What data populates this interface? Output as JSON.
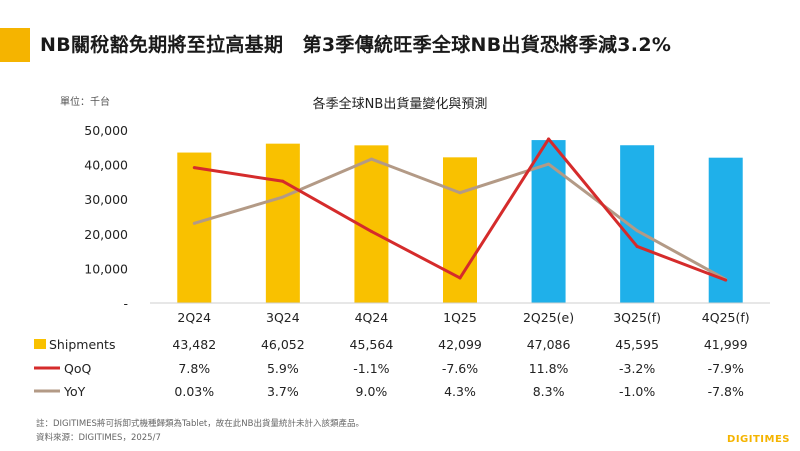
{
  "headline": "NB關稅豁免期將至拉高基期　第3季傳統旺季全球NB出貨恐將季減3.2%",
  "unit_label": "單位：千台",
  "footnote_1": "註：DIGITIMES將可拆卸式機種歸類為Tablet，故在此NB出貨量統計未計入該類產品。",
  "footnote_2": "資料來源：DIGITIMES，2025/7",
  "logo": "DIGITIMES",
  "colors": {
    "accent": "#f5b400",
    "bar_actual": "#f9c100",
    "bar_forecast": "#1fb0ea",
    "qoq_line": "#d52b2b",
    "yoy_line": "#b39a86"
  },
  "chart_data": {
    "type": "bar",
    "title": "各季全球NB出貨量變化與預測",
    "ylabel": "單位：千台",
    "categories": [
      "2Q24",
      "3Q24",
      "4Q24",
      "1Q25",
      "2Q25(e)",
      "3Q25(f)",
      "4Q25(f)"
    ],
    "ylim": [
      0,
      50000
    ],
    "yticks": [
      "-",
      "10,000",
      "20,000",
      "30,000",
      "40,000",
      "50,000"
    ],
    "forecast_start_index": 4,
    "series": [
      {
        "name": "Shipments",
        "kind": "bar",
        "values": [
          43482,
          46052,
          45564,
          42099,
          47086,
          45595,
          41999
        ],
        "labels": [
          "43,482",
          "46,052",
          "45,564",
          "42,099",
          "47,086",
          "45,595",
          "41,999"
        ]
      },
      {
        "name": "QoQ",
        "kind": "line",
        "values": [
          7.8,
          5.9,
          -1.1,
          -7.6,
          11.8,
          -3.2,
          -7.9
        ],
        "labels": [
          "7.8%",
          "5.9%",
          "-1.1%",
          "-7.6%",
          "11.8%",
          "-3.2%",
          "-7.9%"
        ]
      },
      {
        "name": "YoY",
        "kind": "line",
        "values": [
          0.03,
          3.7,
          9.0,
          4.3,
          8.3,
          -1.0,
          -7.8
        ],
        "labels": [
          "0.03%",
          "3.7%",
          "9.0%",
          "4.3%",
          "8.3%",
          "-1.0%",
          "-7.8%"
        ]
      }
    ],
    "grid": false,
    "legend": "table-below"
  }
}
